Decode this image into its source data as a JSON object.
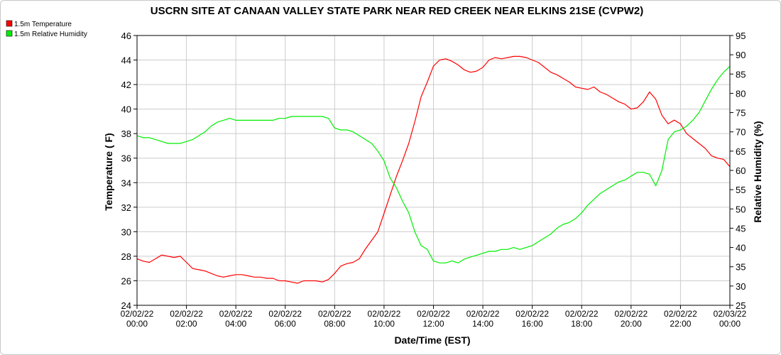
{
  "chart_data": {
    "type": "line",
    "title": "USCRN SITE AT CANAAN VALLEY STATE PARK NEAR RED CREEK NEAR ELKINS 21SE (CVPW2)",
    "xlabel": "Date/Time (EST)",
    "ylabel_left": "Temperature ( F)",
    "ylabel_right": "Relative Humidity (%)",
    "ylim_left": [
      24,
      46
    ],
    "ylim_right": [
      25,
      95
    ],
    "xlim_hours": [
      0,
      24
    ],
    "left_ticks": [
      24,
      26,
      28,
      30,
      32,
      34,
      36,
      38,
      40,
      42,
      44,
      46
    ],
    "right_ticks": [
      25,
      30,
      35,
      40,
      45,
      50,
      55,
      60,
      65,
      70,
      75,
      80,
      85,
      90,
      95
    ],
    "x_ticks": [
      {
        "date": "02/02/22",
        "time": "00:00"
      },
      {
        "date": "02/02/22",
        "time": "02:00"
      },
      {
        "date": "02/02/22",
        "time": "04:00"
      },
      {
        "date": "02/02/22",
        "time": "06:00"
      },
      {
        "date": "02/02/22",
        "time": "08:00"
      },
      {
        "date": "02/02/22",
        "time": "10:00"
      },
      {
        "date": "02/02/22",
        "time": "12:00"
      },
      {
        "date": "02/02/22",
        "time": "14:00"
      },
      {
        "date": "02/02/22",
        "time": "16:00"
      },
      {
        "date": "02/02/22",
        "time": "18:00"
      },
      {
        "date": "02/02/22",
        "time": "20:00"
      },
      {
        "date": "02/02/22",
        "time": "22:00"
      },
      {
        "date": "02/03/22",
        "time": "00:00"
      }
    ],
    "grid": true,
    "legend_position": "top-left",
    "series": [
      {
        "name": "1.5m Temperature",
        "color": "#ff0000",
        "axis": "left",
        "points": [
          [
            0.0,
            27.8
          ],
          [
            0.25,
            27.6
          ],
          [
            0.5,
            27.5
          ],
          [
            0.75,
            27.8
          ],
          [
            1.0,
            28.1
          ],
          [
            1.25,
            28.0
          ],
          [
            1.5,
            27.9
          ],
          [
            1.75,
            28.0
          ],
          [
            2.0,
            27.5
          ],
          [
            2.25,
            27.0
          ],
          [
            2.5,
            26.9
          ],
          [
            2.75,
            26.8
          ],
          [
            3.0,
            26.6
          ],
          [
            3.25,
            26.4
          ],
          [
            3.5,
            26.3
          ],
          [
            3.75,
            26.4
          ],
          [
            4.0,
            26.5
          ],
          [
            4.25,
            26.5
          ],
          [
            4.5,
            26.4
          ],
          [
            4.75,
            26.3
          ],
          [
            5.0,
            26.3
          ],
          [
            5.25,
            26.2
          ],
          [
            5.5,
            26.2
          ],
          [
            5.75,
            26.0
          ],
          [
            6.0,
            26.0
          ],
          [
            6.25,
            25.9
          ],
          [
            6.5,
            25.8
          ],
          [
            6.75,
            26.0
          ],
          [
            7.0,
            26.0
          ],
          [
            7.25,
            26.0
          ],
          [
            7.5,
            25.9
          ],
          [
            7.75,
            26.1
          ],
          [
            8.0,
            26.6
          ],
          [
            8.25,
            27.2
          ],
          [
            8.5,
            27.4
          ],
          [
            8.75,
            27.5
          ],
          [
            9.0,
            27.8
          ],
          [
            9.25,
            28.6
          ],
          [
            9.5,
            29.3
          ],
          [
            9.75,
            30.0
          ],
          [
            10.0,
            31.5
          ],
          [
            10.25,
            33.0
          ],
          [
            10.5,
            34.5
          ],
          [
            10.75,
            35.8
          ],
          [
            11.0,
            37.2
          ],
          [
            11.25,
            39.0
          ],
          [
            11.5,
            41.0
          ],
          [
            11.75,
            42.2
          ],
          [
            12.0,
            43.5
          ],
          [
            12.25,
            44.0
          ],
          [
            12.5,
            44.1
          ],
          [
            12.75,
            43.9
          ],
          [
            13.0,
            43.6
          ],
          [
            13.25,
            43.2
          ],
          [
            13.5,
            43.0
          ],
          [
            13.75,
            43.1
          ],
          [
            14.0,
            43.4
          ],
          [
            14.25,
            44.0
          ],
          [
            14.5,
            44.2
          ],
          [
            14.75,
            44.1
          ],
          [
            15.0,
            44.2
          ],
          [
            15.25,
            44.3
          ],
          [
            15.5,
            44.3
          ],
          [
            15.75,
            44.2
          ],
          [
            16.0,
            44.0
          ],
          [
            16.25,
            43.8
          ],
          [
            16.5,
            43.4
          ],
          [
            16.75,
            43.0
          ],
          [
            17.0,
            42.8
          ],
          [
            17.25,
            42.5
          ],
          [
            17.5,
            42.2
          ],
          [
            17.75,
            41.8
          ],
          [
            18.0,
            41.7
          ],
          [
            18.25,
            41.6
          ],
          [
            18.5,
            41.8
          ],
          [
            18.75,
            41.4
          ],
          [
            19.0,
            41.2
          ],
          [
            19.25,
            40.9
          ],
          [
            19.5,
            40.6
          ],
          [
            19.75,
            40.4
          ],
          [
            20.0,
            40.0
          ],
          [
            20.25,
            40.1
          ],
          [
            20.5,
            40.6
          ],
          [
            20.75,
            41.4
          ],
          [
            21.0,
            40.8
          ],
          [
            21.25,
            39.5
          ],
          [
            21.5,
            38.8
          ],
          [
            21.75,
            39.1
          ],
          [
            22.0,
            38.8
          ],
          [
            22.25,
            38.0
          ],
          [
            22.5,
            37.6
          ],
          [
            22.75,
            37.2
          ],
          [
            23.0,
            36.8
          ],
          [
            23.25,
            36.2
          ],
          [
            23.5,
            36.0
          ],
          [
            23.75,
            35.9
          ],
          [
            24.0,
            35.3
          ]
        ]
      },
      {
        "name": "1.5m Relative Humidity",
        "color": "#00ee00",
        "axis": "right",
        "points": [
          [
            0.0,
            69
          ],
          [
            0.25,
            68.5
          ],
          [
            0.5,
            68.5
          ],
          [
            0.75,
            68
          ],
          [
            1.0,
            67.5
          ],
          [
            1.25,
            67
          ],
          [
            1.5,
            67
          ],
          [
            1.75,
            67
          ],
          [
            2.0,
            67.5
          ],
          [
            2.25,
            68
          ],
          [
            2.5,
            69
          ],
          [
            2.75,
            70
          ],
          [
            3.0,
            71.5
          ],
          [
            3.25,
            72.5
          ],
          [
            3.5,
            73
          ],
          [
            3.75,
            73.5
          ],
          [
            4.0,
            73
          ],
          [
            4.25,
            73
          ],
          [
            4.5,
            73
          ],
          [
            4.75,
            73
          ],
          [
            5.0,
            73
          ],
          [
            5.25,
            73
          ],
          [
            5.5,
            73
          ],
          [
            5.75,
            73.5
          ],
          [
            6.0,
            73.5
          ],
          [
            6.25,
            74
          ],
          [
            6.5,
            74
          ],
          [
            6.75,
            74
          ],
          [
            7.0,
            74
          ],
          [
            7.25,
            74
          ],
          [
            7.5,
            74
          ],
          [
            7.75,
            73.5
          ],
          [
            8.0,
            71
          ],
          [
            8.25,
            70.5
          ],
          [
            8.5,
            70.5
          ],
          [
            8.75,
            70
          ],
          [
            9.0,
            69
          ],
          [
            9.25,
            68
          ],
          [
            9.5,
            67
          ],
          [
            9.75,
            65
          ],
          [
            10.0,
            62.5
          ],
          [
            10.25,
            58
          ],
          [
            10.5,
            55.5
          ],
          [
            10.75,
            52
          ],
          [
            11.0,
            49
          ],
          [
            11.25,
            44
          ],
          [
            11.5,
            40.5
          ],
          [
            11.75,
            39.5
          ],
          [
            12.0,
            36.5
          ],
          [
            12.25,
            36
          ],
          [
            12.5,
            36
          ],
          [
            12.75,
            36.5
          ],
          [
            13.0,
            36
          ],
          [
            13.25,
            37
          ],
          [
            13.5,
            37.5
          ],
          [
            13.75,
            38
          ],
          [
            14.0,
            38.5
          ],
          [
            14.25,
            39
          ],
          [
            14.5,
            39
          ],
          [
            14.75,
            39.5
          ],
          [
            15.0,
            39.5
          ],
          [
            15.25,
            40
          ],
          [
            15.5,
            39.5
          ],
          [
            15.75,
            40
          ],
          [
            16.0,
            40.5
          ],
          [
            16.25,
            41.5
          ],
          [
            16.5,
            42.5
          ],
          [
            16.75,
            43.5
          ],
          [
            17.0,
            45
          ],
          [
            17.25,
            46
          ],
          [
            17.5,
            46.5
          ],
          [
            17.75,
            47.5
          ],
          [
            18.0,
            49
          ],
          [
            18.25,
            51
          ],
          [
            18.5,
            52.5
          ],
          [
            18.75,
            54
          ],
          [
            19.0,
            55
          ],
          [
            19.25,
            56
          ],
          [
            19.5,
            57
          ],
          [
            19.75,
            57.5
          ],
          [
            20.0,
            58.5
          ],
          [
            20.25,
            59.5
          ],
          [
            20.5,
            59.5
          ],
          [
            20.75,
            59
          ],
          [
            21.0,
            56
          ],
          [
            21.25,
            60
          ],
          [
            21.5,
            68
          ],
          [
            21.75,
            70
          ],
          [
            22.0,
            70.5
          ],
          [
            22.25,
            71.5
          ],
          [
            22.5,
            73
          ],
          [
            22.75,
            75
          ],
          [
            23.0,
            78
          ],
          [
            23.25,
            81
          ],
          [
            23.5,
            83.5
          ],
          [
            23.75,
            85.5
          ],
          [
            24.0,
            87
          ]
        ]
      }
    ]
  }
}
